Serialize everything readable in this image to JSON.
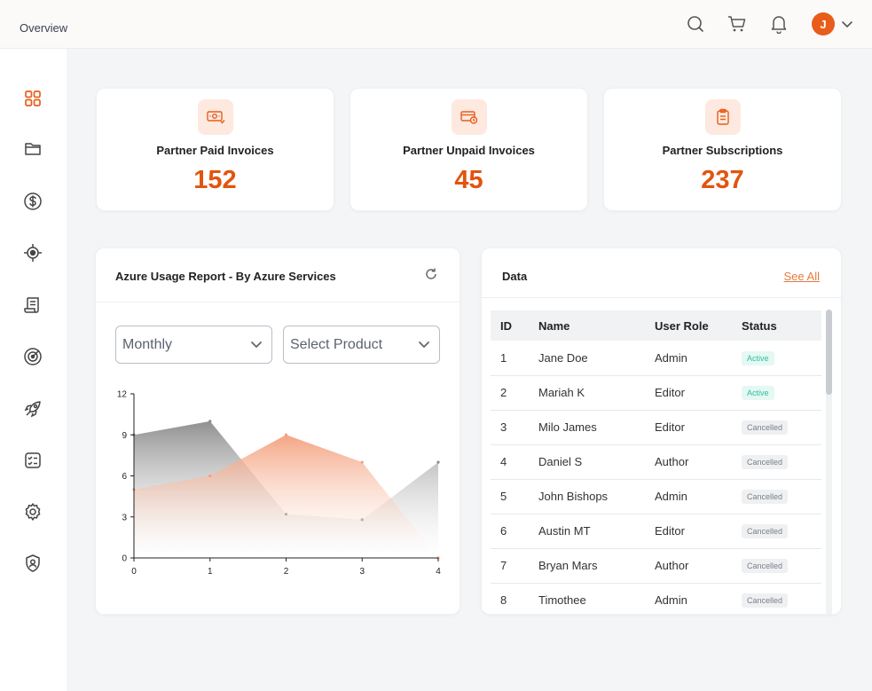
{
  "topbar": {
    "title": "Overview",
    "avatar_letter": "J"
  },
  "stats": [
    {
      "label": "Partner Paid Invoices",
      "value": "152"
    },
    {
      "label": "Partner Unpaid Invoices",
      "value": "45"
    },
    {
      "label": "Partner Subscriptions",
      "value": "237"
    }
  ],
  "chart_card": {
    "title": "Azure Usage Report - By Azure Services",
    "period_select": "Monthly",
    "product_select": "Select Product"
  },
  "chart_data": {
    "type": "area",
    "x": [
      0,
      1,
      2,
      3,
      4
    ],
    "xlim": [
      0,
      4
    ],
    "ylim": [
      0,
      12
    ],
    "y_ticks": [
      0,
      3,
      6,
      9,
      12
    ],
    "series": [
      {
        "values": [
          9,
          10,
          3.2,
          2.8,
          7
        ],
        "color": "#8c8c8c"
      },
      {
        "values": [
          5,
          6,
          9,
          7,
          0
        ],
        "color": "#f4a07c"
      }
    ]
  },
  "data_card": {
    "title": "Data",
    "see_all": "See All",
    "columns": [
      "ID",
      "Name",
      "User Role",
      "Status"
    ],
    "rows": [
      {
        "id": "1",
        "name": "Jane Doe",
        "role": "Admin",
        "status": "Active"
      },
      {
        "id": "2",
        "name": "Mariah K",
        "role": "Editor",
        "status": "Active"
      },
      {
        "id": "3",
        "name": "Milo James",
        "role": "Editor",
        "status": "Cancelled"
      },
      {
        "id": "4",
        "name": "Daniel S",
        "role": "Author",
        "status": "Cancelled"
      },
      {
        "id": "5",
        "name": "John Bishops",
        "role": "Admin",
        "status": "Cancelled"
      },
      {
        "id": "6",
        "name": "Austin MT",
        "role": "Editor",
        "status": "Cancelled"
      },
      {
        "id": "7",
        "name": "Bryan Mars",
        "role": "Author",
        "status": "Cancelled"
      },
      {
        "id": "8",
        "name": "Timothee",
        "role": "Admin",
        "status": "Cancelled"
      }
    ]
  },
  "sidebar": {
    "items": [
      "dashboard-icon",
      "folder-icon",
      "dollar-icon",
      "target-icon",
      "scroll-icon",
      "radar-icon",
      "rocket-icon",
      "checklist-icon",
      "gear-icon",
      "shield-user-icon"
    ]
  },
  "colors": {
    "accent": "#e2540f",
    "active": "#2fbf9c"
  }
}
